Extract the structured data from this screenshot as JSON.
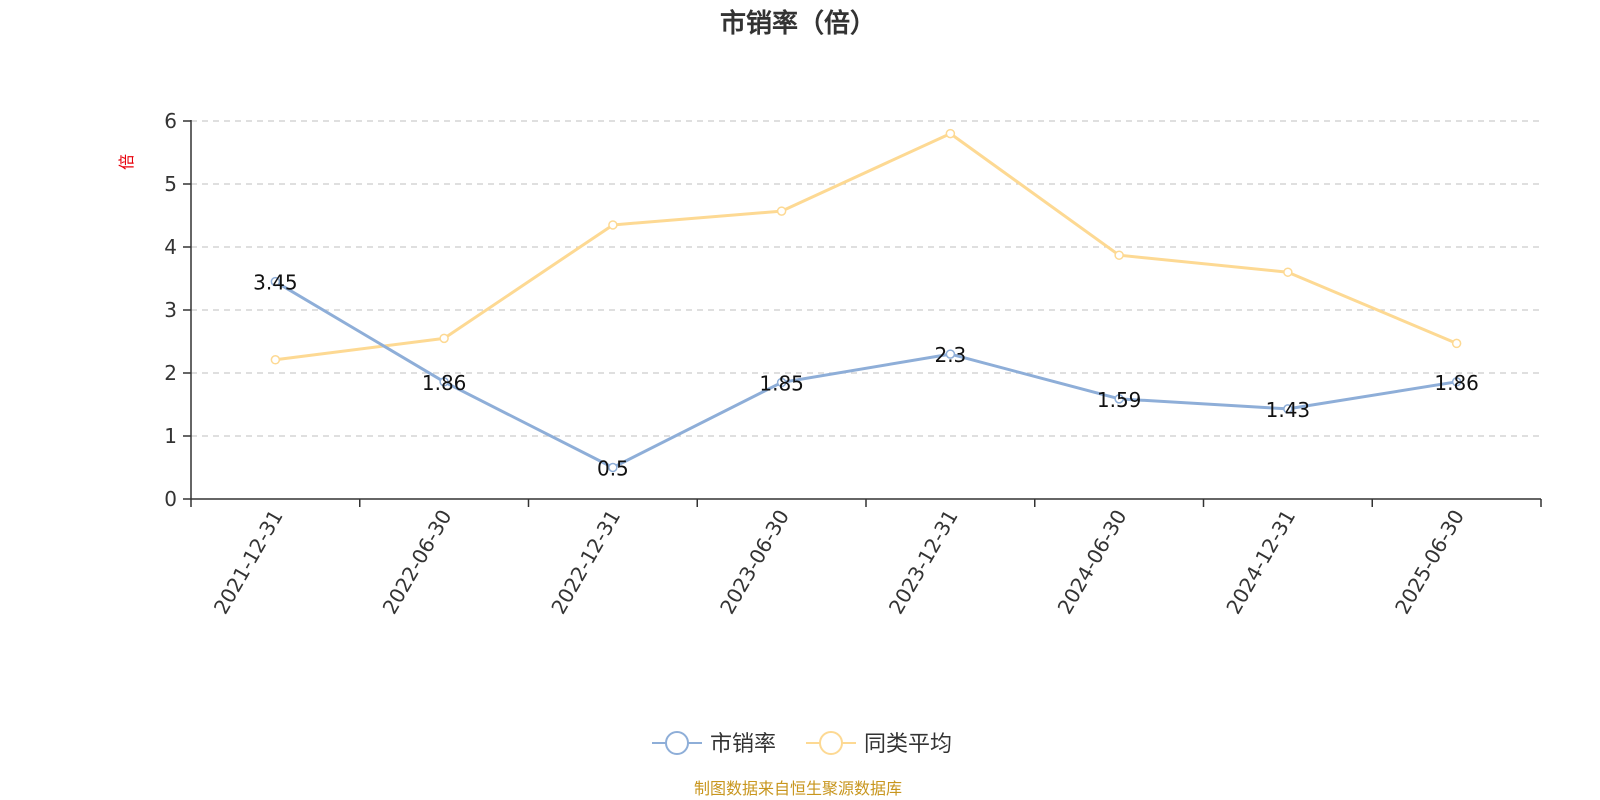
{
  "chart_data": {
    "type": "line",
    "title": "市销率（倍）",
    "ylabel": "倍",
    "ylim": [
      0,
      6
    ],
    "yticks": [
      "0",
      "1",
      "2",
      "3",
      "4",
      "5",
      "6"
    ],
    "grid": true,
    "legend_position": "bottom-center",
    "categories": [
      "2021-12-31",
      "2022-06-30",
      "2022-12-31",
      "2023-06-30",
      "2023-12-31",
      "2024-06-30",
      "2024-12-31",
      "2025-06-30"
    ],
    "series": [
      {
        "name": "市销率",
        "color": "#8eaed8",
        "values": [
          3.45,
          1.86,
          0.5,
          1.85,
          2.3,
          1.59,
          1.43,
          1.86
        ],
        "labels": [
          "3.45",
          "1.86",
          "0.5",
          "1.85",
          "2.3",
          "1.59",
          "1.43",
          "1.86"
        ]
      },
      {
        "name": "同类平均",
        "color": "#fdd993",
        "values": [
          2.21,
          2.55,
          4.35,
          4.57,
          5.8,
          3.87,
          3.6,
          2.47
        ]
      }
    ],
    "source": "制图数据来自恒生聚源数据库"
  }
}
